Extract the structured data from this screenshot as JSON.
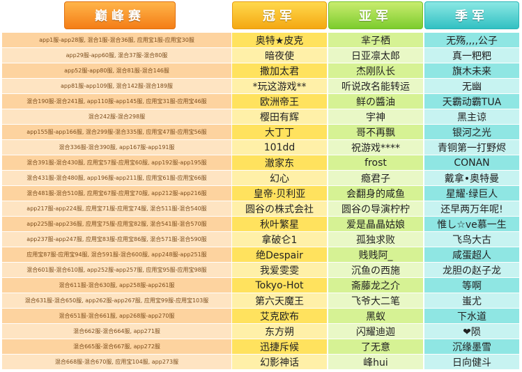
{
  "headers": {
    "match": "巅峰赛",
    "champion": "冠军",
    "runner_up": "亚军",
    "third": "季军"
  },
  "rows": [
    {
      "servers": "app1服-app28服, 混合1服-混合36服, 应用宝1服-应用宝30服",
      "champion": "奥特★皮克",
      "runner_up": "芈子栖",
      "third": "无殇,,,,公子"
    },
    {
      "servers": "app29服-app60服, 混合37服-混合80服",
      "champion": "暗夜使",
      "runner_up": "日亚凛太郎",
      "third": "真一粑粑"
    },
    {
      "servers": "app52服-app80服, 混合81服-混合146服",
      "champion": "撒加太君",
      "runner_up": "杰刚队长",
      "third": "旗木未来"
    },
    {
      "servers": "app81服-app109服, 混合142服-混合189服",
      "champion": "*玩这游戏**",
      "runner_up": "听说改名能转运",
      "third": "无幽"
    },
    {
      "servers": "混合190服-混合241服, app110服-app145服, 应用宝31服-应用宝46服",
      "champion": "欧洲帝王",
      "runner_up": "鲜の醬油",
      "third": "天霸动霸TUA"
    },
    {
      "servers": "混合242服-混合298服",
      "champion": "樱田有辉",
      "runner_up": "宇神",
      "third": "黑主谅"
    },
    {
      "servers": "app155服-app166服, 混合299服-混合335服, 应用宝47服-应用宝56服",
      "champion": "大丁丁",
      "runner_up": "哥不再飘",
      "third": "银河之光"
    },
    {
      "servers": "混合336服-混合390服, app167服-app191服",
      "champion": "101dd",
      "runner_up": "祝游戏****",
      "third": "青铜第一打野烬"
    },
    {
      "servers": "混合391服-混合430服, 应用宝57服-应用宝60服, app192服-app195服",
      "champion": "澈家东",
      "runner_up": "frost",
      "third": "CONAN"
    },
    {
      "servers": "混合431服-混合480服, app196服-app211服, 应用宝61服-应用宝66服",
      "champion": "幻心",
      "runner_up": "瘾君子",
      "third": "戴拿•奥特曼"
    },
    {
      "servers": "混合481服-混合510服, 应用宝67服-应用宝70服, app212服-app216服",
      "champion": "皇帝·贝利亚",
      "runner_up": "会翻身的咸鱼",
      "third": "星耀·绿巨人"
    },
    {
      "servers": "app217服-app224服, 应用宝71服-应用宝74服, 混合511服-混合540服",
      "champion": "圆谷の株式会社",
      "runner_up": "圆谷の导演柠柠",
      "third": "还早两万年呢!"
    },
    {
      "servers": "app225服-app236服, 应用宝75服-应用宝82服, 混合541服-混合570服",
      "champion": "秋叶繁星",
      "runner_up": "爱是晶晶姑娘",
      "third": "惟し☆ve慕一生"
    },
    {
      "servers": "app237服-app247服, 应用宝83服-应用宝86服, 混合571服-混合590服",
      "champion": "拿破仑1",
      "runner_up": "孤独求败",
      "third": "飞鸟大古"
    },
    {
      "servers": "应用宝87服-应用宝94服, 混合591服-混合600服, app248服-app251服",
      "champion": "绝Despair",
      "runner_up": "贱贱阿_",
      "third": "咸蛋超人"
    },
    {
      "servers": "混合601服-混合610服, app252服-app257服, 应用宝95服-应用宝98服",
      "champion": "我爱雯雯",
      "runner_up": "沉鱼の西施",
      "third": "龙胆の赵子龙"
    },
    {
      "servers": "混合611服-混合630服, app258服-app261服",
      "champion": "Tokyo-Hot",
      "runner_up": "斋藤龙之介",
      "third": "等啊"
    },
    {
      "servers": "混合631服-混合650服, app262服-app267服, 应用宝99服-应用宝103服",
      "champion": "第六天魔王",
      "runner_up": "飞爷大二笔",
      "third": "蚩尤"
    },
    {
      "servers": "混合651服-混合661服, app268服-app270服",
      "champion": "艾克欧布",
      "runner_up": "黑蚁",
      "third": "下水道"
    },
    {
      "servers": "混合662服-混合664服, app271服",
      "champion": "东方朔",
      "runner_up": "闪耀迪迦",
      "third": "❤陨"
    },
    {
      "servers": "混合665服-混合667服, app272服",
      "champion": "迅捷斥候",
      "runner_up": "了无意",
      "third": "沉缘墨雪"
    },
    {
      "servers": "混合668服-混合670服, 应用宝104服, app273服",
      "champion": "幻影神话",
      "runner_up": "峰hui",
      "third": "日向健斗"
    }
  ]
}
